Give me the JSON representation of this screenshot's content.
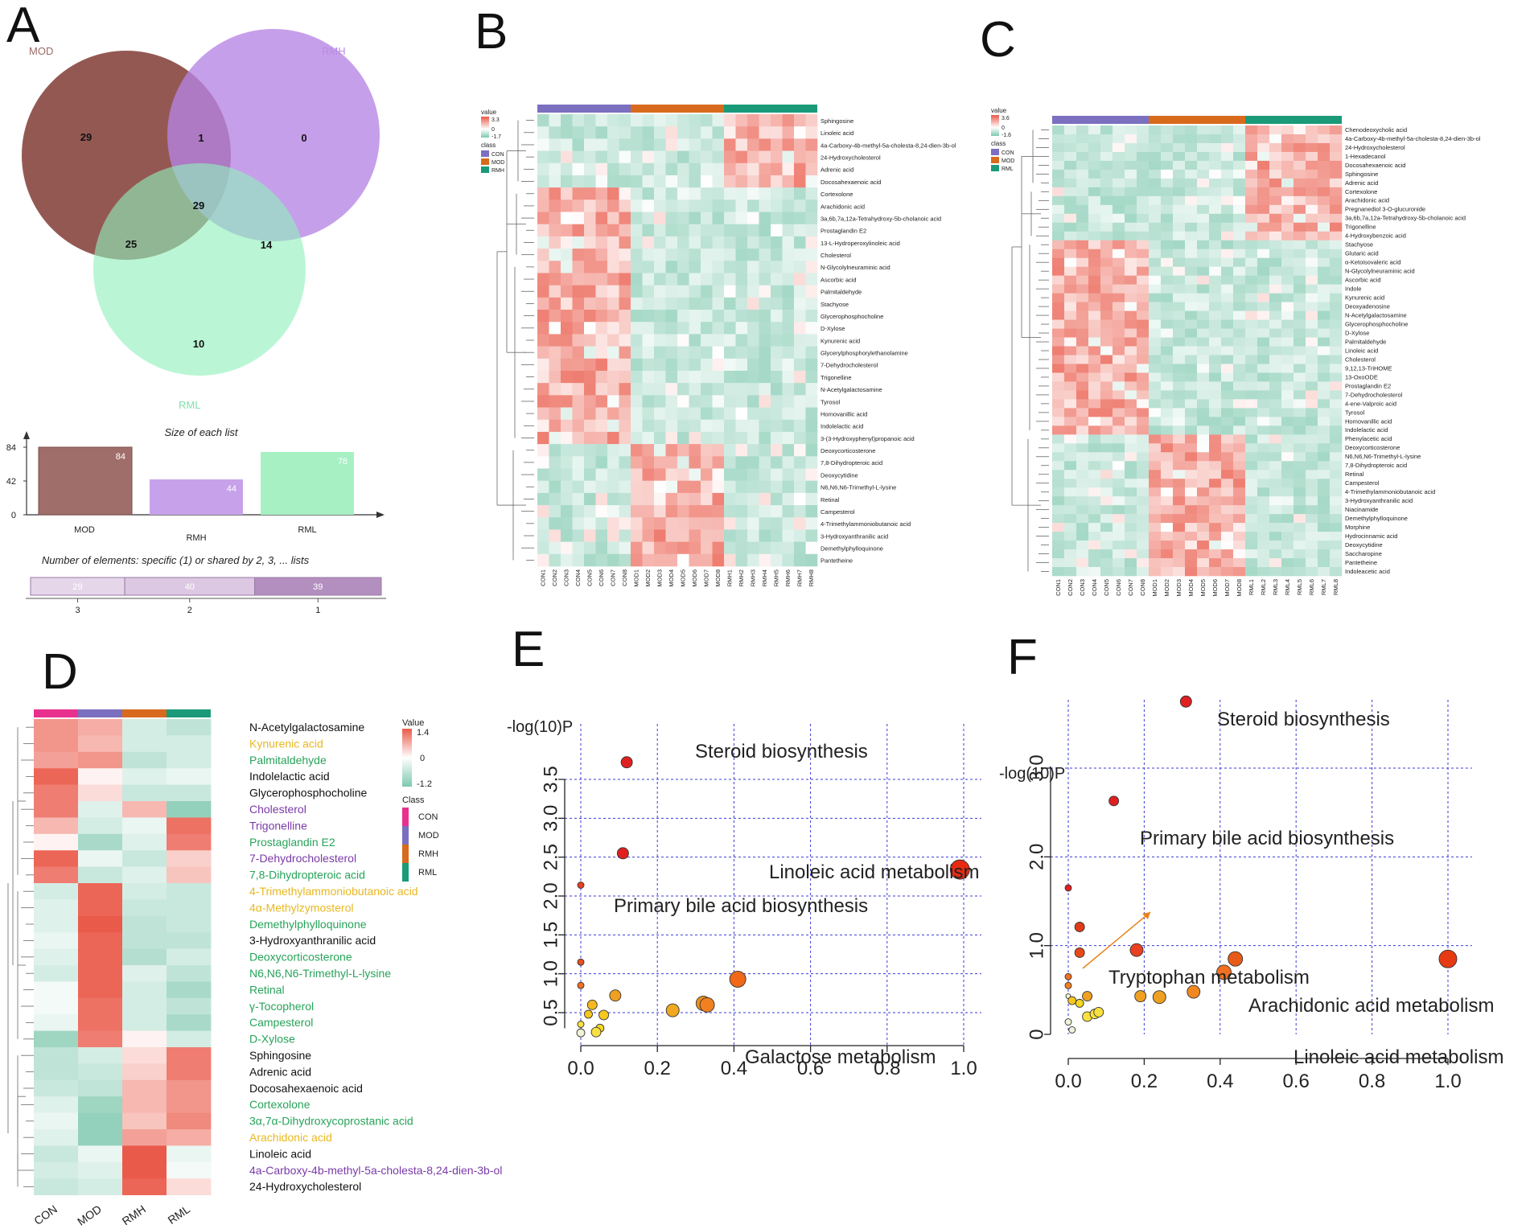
{
  "panels": {
    "A": "A",
    "B": "B",
    "C": "C",
    "D": "D",
    "E": "E",
    "F": "F"
  },
  "chart_data": [
    {
      "id": "A-venn",
      "type": "venn",
      "sets": [
        "MOD",
        "RMH",
        "RML"
      ],
      "regions": {
        "MOD_only": 29,
        "MOD_RMH": 1,
        "RMH_only": 0,
        "MOD_RMH_RML": 29,
        "MOD_RML": 25,
        "RMH_RML": 14,
        "RML_only": 10
      },
      "colors": {
        "MOD": "#8e4f4a",
        "RMH": "#b684e4",
        "RML": "#8ff0bb"
      }
    },
    {
      "id": "A-sizes",
      "type": "bar",
      "title": "Size of each list",
      "categories": [
        "MOD",
        "RMH",
        "RML"
      ],
      "values": [
        84,
        44,
        78
      ],
      "yticks": [
        "0",
        "42",
        "84"
      ],
      "colors": [
        "#a06e6a",
        "#c7a2ea",
        "#a6f0c4"
      ]
    },
    {
      "id": "A-shared",
      "type": "bar",
      "title": "Number of elements: specific (1) or shared by 2, 3, ... lists",
      "categories": [
        "3",
        "2",
        "1"
      ],
      "values": [
        29,
        40,
        39
      ]
    },
    {
      "id": "B",
      "type": "heatmap",
      "value_legend": {
        "title": "value",
        "max": "3.3",
        "mid": "0",
        "min": "-1.7"
      },
      "class_legend": {
        "title": "class",
        "items": [
          "CON",
          "MOD",
          "RMH"
        ]
      },
      "columns": [
        "CON1",
        "CON2",
        "CON3",
        "CON4",
        "CON5",
        "CON6",
        "CON7",
        "CON8",
        "MOD1",
        "MOD2",
        "MOD3",
        "MOD4",
        "MOD5",
        "MOD6",
        "MOD7",
        "MOD8",
        "RMH1",
        "RMH2",
        "RMH3",
        "RMH4",
        "RMH5",
        "RMH6",
        "RMH7",
        "RMH8"
      ],
      "rows": [
        "Sphingosine",
        "Linoleic acid",
        "4a-Carboxy-4b-methyl-5a-cholesta-8,24-dien-3b-ol",
        "24-Hydroxycholesterol",
        "Adrenic acid",
        "Docosahexaenoic acid",
        "Cortexolone",
        "Arachidonic acid",
        "3a,6b,7a,12a-Tetrahydroxy-5b-cholanoic acid",
        "Prostaglandin E2",
        "13-L-Hydroperoxylinoleic acid",
        "Cholesterol",
        "N-Glycolylneuraminic acid",
        "Ascorbic acid",
        "Palmitaldehyde",
        "Stachyose",
        "Glycerophosphocholine",
        "D-Xylose",
        "Kynurenic acid",
        "Glycerylphosphorylethanolamine",
        "7-Dehydrocholesterol",
        "Trigonelline",
        "N-Acetylgalactosamine",
        "Tyrosol",
        "Homovanillic acid",
        "Indolelactic acid",
        "3-(3-Hydroxyphenyl)propanoic acid",
        "Deoxycorticosterone",
        "7,8-Dihydropteroic acid",
        "Deoxycytidine",
        "N6,N6,N6-Trimethyl-L-lysine",
        "Retinal",
        "Campesterol",
        "4-Trimethylammoniobutanoic acid",
        "3-Hydroxyanthranilic acid",
        "Demethylphylloquinone",
        "Pantetheine"
      ],
      "row_groups": [
        6,
        6,
        15,
        10
      ]
    },
    {
      "id": "C",
      "type": "heatmap",
      "value_legend": {
        "title": "value",
        "max": "3.6",
        "mid": "0",
        "min": "-1.6"
      },
      "class_legend": {
        "title": "class",
        "items": [
          "CON",
          "MOD",
          "RML"
        ]
      },
      "columns": [
        "CON1",
        "CON2",
        "CON3",
        "CON4",
        "CON5",
        "CON6",
        "CON7",
        "CON8",
        "MOD1",
        "MOD2",
        "MOD3",
        "MOD4",
        "MOD5",
        "MOD6",
        "MOD7",
        "MOD8",
        "RML1",
        "RML2",
        "RML3",
        "RML4",
        "RML5",
        "RML6",
        "RML7",
        "RML8"
      ],
      "rows": [
        "Chenodeoxycholic acid",
        "4a-Carboxy-4b-methyl-5a-cholesta-8,24-dien-3b-ol",
        "24-Hydroxycholesterol",
        "1-Hexadecanol",
        "Docosahexaenoic acid",
        "Sphingosine",
        "Adrenic acid",
        "Cortexolone",
        "Arachidonic acid",
        "Pregnanediol 3-O-glucuronide",
        "3a,6b,7a,12a-Tetrahydroxy-5b-cholanoic acid",
        "Trigonelline",
        "4-Hydroxybenzoic acid",
        "Stachyose",
        "Glutaric acid",
        "α-Ketoisovaleric acid",
        "N-Glycolylneuraminic acid",
        "Ascorbic acid",
        "Indole",
        "Kynurenic acid",
        "Deoxyadenosine",
        "N-Acetylgalactosamine",
        "Glycerophosphocholine",
        "D-Xylose",
        "Palmitaldehyde",
        "Linoleic acid",
        "Cholesterol",
        "9,12,13-TriHOME",
        "13-OxoODE",
        "Prostaglandin E2",
        "7-Dehydrocholesterol",
        "4-ene-Valproic acid",
        "Tyrosol",
        "Homovanillic acid",
        "Indolelactic acid",
        "Phenylacetic acid",
        "Deoxycorticosterone",
        "N6,N6,N6-Trimethyl-L-lysine",
        "7,8-Dihydropteroic acid",
        "Retinal",
        "Campesterol",
        "4-Trimethylammoniobutanoic acid",
        "3-Hydroxyanthranilic acid",
        "Niacinamide",
        "Demethylphylloquinone",
        "Morphine",
        "Hydrocinnamic acid",
        "Deoxycytidine",
        "Saccharopine",
        "Pantetheine",
        "Indoleacetic acid"
      ],
      "row_groups": [
        7,
        6,
        22,
        16
      ]
    },
    {
      "id": "D",
      "type": "heatmap",
      "columns": [
        "CON",
        "MOD",
        "RMH",
        "RML"
      ],
      "value_legend": {
        "title": "Value",
        "max": "1.4",
        "mid": "0",
        "min": "-1.2"
      },
      "class_legend": {
        "title": "Class",
        "items": [
          "CON",
          "MOD",
          "RMH",
          "RML"
        ],
        "colors": [
          "#e8308e",
          "#7b6fc0",
          "#d86a1d",
          "#1a9a78"
        ]
      },
      "rows": [
        {
          "label": "N-Acetylgalactosamine",
          "color": "#111111",
          "values": [
            0.9,
            0.7,
            -0.4,
            -0.6
          ]
        },
        {
          "label": "Kynurenic acid",
          "color": "#e8b820",
          "values": [
            0.9,
            0.6,
            -0.4,
            -0.4
          ]
        },
        {
          "label": "Palmitaldehyde",
          "color": "#27a35a",
          "values": [
            0.8,
            0.9,
            -0.6,
            -0.4
          ]
        },
        {
          "label": "Indolelactic acid",
          "color": "#111111",
          "values": [
            1.3,
            0.1,
            -0.3,
            -0.2
          ]
        },
        {
          "label": "Glycerophosphocholine",
          "color": "#111111",
          "values": [
            1.1,
            0.3,
            -0.5,
            -0.5
          ]
        },
        {
          "label": "Cholesterol",
          "color": "#7a3aa8",
          "values": [
            1.1,
            -0.3,
            0.6,
            -1.0
          ]
        },
        {
          "label": "Trigonelline",
          "color": "#7a3aa8",
          "values": [
            0.6,
            -0.4,
            -0.2,
            1.2
          ]
        },
        {
          "label": "Prostaglandin E2",
          "color": "#27a35a",
          "values": [
            0.1,
            -0.8,
            -0.3,
            1.1
          ]
        },
        {
          "label": "7-Dehydrocholesterol",
          "color": "#7a3aa8",
          "values": [
            1.3,
            -0.2,
            -0.5,
            0.4
          ]
        },
        {
          "label": "7,8-Dihydropteroic acid",
          "color": "#27a35a",
          "values": [
            1.1,
            -0.5,
            -0.3,
            0.5
          ]
        },
        {
          "label": "4-Trimethylammoniobutanoic acid",
          "color": "#e8b820",
          "values": [
            -0.4,
            1.3,
            -0.4,
            -0.5
          ]
        },
        {
          "label": "4α-Methylzymosterol",
          "color": "#e8b820",
          "values": [
            -0.3,
            1.3,
            -0.5,
            -0.5
          ]
        },
        {
          "label": "Demethylphylloquinone",
          "color": "#27a35a",
          "values": [
            -0.3,
            1.4,
            -0.6,
            -0.5
          ]
        },
        {
          "label": "3-Hydroxyanthranilic acid",
          "color": "#111111",
          "values": [
            -0.2,
            1.3,
            -0.6,
            -0.6
          ]
        },
        {
          "label": "Deoxycorticosterone",
          "color": "#27a35a",
          "values": [
            -0.3,
            1.3,
            -0.7,
            -0.4
          ]
        },
        {
          "label": "N6,N6,N6-Trimethyl-L-lysine",
          "color": "#27a35a",
          "values": [
            -0.4,
            1.3,
            -0.3,
            -0.6
          ]
        },
        {
          "label": "Retinal",
          "color": "#27a35a",
          "values": [
            -0.1,
            1.3,
            -0.4,
            -0.8
          ]
        },
        {
          "label": "γ-Tocopherol",
          "color": "#27a35a",
          "values": [
            -0.1,
            1.2,
            -0.4,
            -0.6
          ]
        },
        {
          "label": "Campesterol",
          "color": "#27a35a",
          "values": [
            -0.2,
            1.2,
            -0.4,
            -0.8
          ]
        },
        {
          "label": "D-Xylose",
          "color": "#27a35a",
          "values": [
            -0.9,
            1.1,
            0.1,
            -0.4
          ]
        },
        {
          "label": "Sphingosine",
          "color": "#111111",
          "values": [
            -0.6,
            -0.4,
            0.3,
            1.1
          ]
        },
        {
          "label": "Adrenic acid",
          "color": "#111111",
          "values": [
            -0.6,
            -0.5,
            0.4,
            1.1
          ]
        },
        {
          "label": "Docosahexaenoic acid",
          "color": "#111111",
          "values": [
            -0.5,
            -0.6,
            0.6,
            0.9
          ]
        },
        {
          "label": "Cortexolone",
          "color": "#27a35a",
          "values": [
            -0.3,
            -0.9,
            0.6,
            0.9
          ]
        },
        {
          "label": "3α,7α-Dihydroxycoprostanic acid",
          "color": "#27a35a",
          "values": [
            -0.2,
            -1.0,
            0.5,
            1.0
          ]
        },
        {
          "label": "Arachidonic acid",
          "color": "#e8b820",
          "values": [
            -0.3,
            -1.0,
            0.8,
            0.7
          ]
        },
        {
          "label": "Linoleic acid",
          "color": "#111111",
          "values": [
            -0.5,
            -0.2,
            1.4,
            -0.2
          ]
        },
        {
          "label": "4a-Carboxy-4b-methyl-5a-cholesta-8,24-dien-3b-ol",
          "color": "#7a3aa8",
          "values": [
            -0.4,
            -0.3,
            1.4,
            -0.1
          ]
        },
        {
          "label": "24-Hydroxycholesterol",
          "color": "#111111",
          "values": [
            -0.5,
            -0.4,
            1.3,
            0.3
          ]
        }
      ]
    },
    {
      "id": "E",
      "type": "scatter",
      "ylabel": "-log(10)P",
      "xticks": [
        "0.0",
        "0.2",
        "0.4",
        "0.6",
        "0.8",
        "1.0"
      ],
      "yticks": [
        "0.5",
        "1.0",
        "1.5",
        "2.0",
        "2.5",
        "3.0",
        "3.5"
      ],
      "xlim": [
        0,
        1
      ],
      "ylim": [
        0.2,
        3.55
      ],
      "points": [
        {
          "x": 0.12,
          "y": 3.72,
          "r": 7,
          "color": "#e02020",
          "label": "Steroid biosynthesis"
        },
        {
          "x": 0.11,
          "y": 2.55,
          "r": 7,
          "color": "#e02020",
          "label": "Primary bile acid biosynthesis"
        },
        {
          "x": 0.99,
          "y": 2.34,
          "r": 12,
          "color": "#e82a12",
          "label": "Linoleic acid metabolism"
        },
        {
          "x": 0.41,
          "y": 0.93,
          "r": 10,
          "color": "#f06818",
          "label": "Galactose metabolism"
        },
        {
          "x": 0.0,
          "y": 2.14,
          "r": 4,
          "color": "#e84020"
        },
        {
          "x": 0.0,
          "y": 1.15,
          "r": 4,
          "color": "#e85020"
        },
        {
          "x": 0.0,
          "y": 0.85,
          "r": 4,
          "color": "#f07020"
        },
        {
          "x": 0.09,
          "y": 0.72,
          "r": 7,
          "color": "#f0a020"
        },
        {
          "x": 0.03,
          "y": 0.6,
          "r": 6,
          "color": "#f5b820"
        },
        {
          "x": 0.02,
          "y": 0.48,
          "r": 5,
          "color": "#f5c820"
        },
        {
          "x": 0.06,
          "y": 0.47,
          "r": 6,
          "color": "#f5c820"
        },
        {
          "x": 0.24,
          "y": 0.53,
          "r": 8,
          "color": "#f0a820"
        },
        {
          "x": 0.32,
          "y": 0.62,
          "r": 9,
          "color": "#f09020"
        },
        {
          "x": 0.33,
          "y": 0.6,
          "r": 9,
          "color": "#f08020"
        },
        {
          "x": 0.05,
          "y": 0.3,
          "r": 5,
          "color": "#f5d820"
        },
        {
          "x": 0.04,
          "y": 0.25,
          "r": 6,
          "color": "#f8e040"
        },
        {
          "x": 0.0,
          "y": 0.35,
          "r": 4,
          "color": "#f8e040"
        },
        {
          "x": 0.0,
          "y": 0.24,
          "r": 5,
          "color": "#f2f2d8"
        }
      ]
    },
    {
      "id": "F",
      "type": "scatter",
      "ylabel": "-log(10)P",
      "xticks": [
        "0.0",
        "0.2",
        "0.4",
        "0.6",
        "0.8",
        "1.0"
      ],
      "yticks": [
        "0",
        "1.0",
        "2.0",
        "3.0"
      ],
      "xlim": [
        0,
        1
      ],
      "ylim": [
        0,
        3.3
      ],
      "points": [
        {
          "x": 0.31,
          "y": 3.75,
          "r": 7,
          "color": "#e02020",
          "label": "Steroid biosynthesis"
        },
        {
          "x": 0.12,
          "y": 2.63,
          "r": 6,
          "color": "#e02020",
          "label": "Primary bile acid biosynthesis"
        },
        {
          "x": 1.0,
          "y": 0.85,
          "r": 11,
          "color": "#e83a12",
          "label": "Linoleic acid metabolism"
        },
        {
          "x": 0.44,
          "y": 0.85,
          "r": 9,
          "color": "#e85a18",
          "label": "Arachidonic acid metabolism"
        },
        {
          "x": 0.0,
          "y": 0.43,
          "r": 3,
          "color": "#f2f2d8",
          "label": "Tryptophan metabolism"
        },
        {
          "x": 0.0,
          "y": 1.65,
          "r": 4,
          "color": "#e02020"
        },
        {
          "x": 0.03,
          "y": 1.21,
          "r": 6,
          "color": "#e03a18"
        },
        {
          "x": 0.03,
          "y": 0.92,
          "r": 6,
          "color": "#e84818"
        },
        {
          "x": 0.18,
          "y": 0.95,
          "r": 8,
          "color": "#e84020"
        },
        {
          "x": 0.41,
          "y": 0.7,
          "r": 9,
          "color": "#f07020"
        },
        {
          "x": 0.33,
          "y": 0.48,
          "r": 8,
          "color": "#f08820"
        },
        {
          "x": 0.24,
          "y": 0.42,
          "r": 8,
          "color": "#f0a020"
        },
        {
          "x": 0.19,
          "y": 0.43,
          "r": 7,
          "color": "#f0a020"
        },
        {
          "x": 0.05,
          "y": 0.43,
          "r": 6,
          "color": "#f0a020"
        },
        {
          "x": 0.0,
          "y": 0.65,
          "r": 4,
          "color": "#f07020"
        },
        {
          "x": 0.0,
          "y": 0.55,
          "r": 4,
          "color": "#f08020"
        },
        {
          "x": 0.01,
          "y": 0.38,
          "r": 5,
          "color": "#f5c820"
        },
        {
          "x": 0.03,
          "y": 0.35,
          "r": 5,
          "color": "#f5d820"
        },
        {
          "x": 0.05,
          "y": 0.2,
          "r": 6,
          "color": "#f8e040"
        },
        {
          "x": 0.07,
          "y": 0.23,
          "r": 6,
          "color": "#f8e040"
        },
        {
          "x": 0.08,
          "y": 0.25,
          "r": 6,
          "color": "#f8e040"
        },
        {
          "x": 0.0,
          "y": 0.14,
          "r": 4,
          "color": "#f2f2d8"
        },
        {
          "x": 0.01,
          "y": 0.05,
          "r": 4,
          "color": "#f2f2d8"
        }
      ]
    }
  ]
}
